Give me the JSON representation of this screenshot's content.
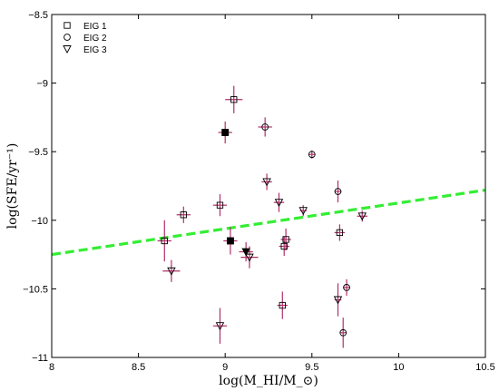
{
  "chart_data": {
    "type": "scatter",
    "xlabel": "log(M_HI/M_⊙)",
    "ylabel": "log(SFE/yr⁻¹)",
    "xlim": [
      8,
      10.5
    ],
    "ylim": [
      -11,
      -8.5
    ],
    "xticks": [
      8,
      8.5,
      9,
      9.5,
      10,
      10.5
    ],
    "xtick_labels": [
      "8",
      "8.5",
      "9",
      "9.5",
      "10",
      "10.5"
    ],
    "yticks": [
      -11,
      -10.5,
      -10,
      -9.5,
      -9,
      -8.5
    ],
    "ytick_labels": [
      "−11",
      "−10.5",
      "−10",
      "−9.5",
      "−9",
      "−8.5"
    ],
    "grid": false,
    "legend_position": "top-left",
    "series": [
      {
        "name": "EIG 1",
        "marker": "square",
        "points": [
          {
            "x": 8.65,
            "y": -10.15,
            "xerr": 0.04,
            "yerr": 0.15
          },
          {
            "x": 8.76,
            "y": -9.96,
            "xerr": 0.04,
            "yerr": 0.06
          },
          {
            "x": 8.97,
            "y": -9.89,
            "xerr": 0.04,
            "yerr": 0.08
          },
          {
            "x": 9.05,
            "y": -9.12,
            "xerr": 0.05,
            "yerr": 0.1
          },
          {
            "x": 9.33,
            "y": -10.62,
            "xerr": 0.03,
            "yerr": 0.1
          },
          {
            "x": 9.34,
            "y": -10.19,
            "xerr": 0.03,
            "yerr": 0.07
          },
          {
            "x": 9.35,
            "y": -10.14,
            "xerr": 0.03,
            "yerr": 0.08
          },
          {
            "x": 9.66,
            "y": -10.09,
            "xerr": 0.03,
            "yerr": 0.06
          },
          {
            "x": 9.0,
            "y": -9.36,
            "xerr": 0.04,
            "yerr": 0.08,
            "filled": true
          },
          {
            "x": 9.03,
            "y": -10.15,
            "xerr": 0.04,
            "yerr": 0.1,
            "filled": true
          }
        ]
      },
      {
        "name": "EIG 2",
        "marker": "circle",
        "points": [
          {
            "x": 9.23,
            "y": -9.32,
            "xerr": 0.04,
            "yerr": 0.07
          },
          {
            "x": 9.5,
            "y": -9.52,
            "xerr": 0.02,
            "yerr": 0.03
          },
          {
            "x": 9.65,
            "y": -9.79,
            "xerr": 0.02,
            "yerr": 0.08
          },
          {
            "x": 9.68,
            "y": -10.82,
            "xerr": 0.02,
            "yerr": 0.11
          },
          {
            "x": 9.7,
            "y": -10.49,
            "xerr": 0.02,
            "yerr": 0.06
          }
        ]
      },
      {
        "name": "EIG 3",
        "marker": "triangle-down",
        "points": [
          {
            "x": 8.69,
            "y": -10.37,
            "xerr": 0.05,
            "yerr": 0.08
          },
          {
            "x": 8.97,
            "y": -10.77,
            "xerr": 0.04,
            "yerr": 0.13
          },
          {
            "x": 9.14,
            "y": -10.27,
            "xerr": 0.05,
            "yerr": 0.08
          },
          {
            "x": 9.24,
            "y": -9.72,
            "xerr": 0.03,
            "yerr": 0.06
          },
          {
            "x": 9.31,
            "y": -9.87,
            "xerr": 0.03,
            "yerr": 0.07
          },
          {
            "x": 9.45,
            "y": -9.93,
            "xerr": 0.02,
            "yerr": 0.04
          },
          {
            "x": 9.65,
            "y": -10.58,
            "xerr": 0.02,
            "yerr": 0.12
          },
          {
            "x": 9.79,
            "y": -9.97,
            "xerr": 0.03,
            "yerr": 0.04
          },
          {
            "x": 9.12,
            "y": -10.23,
            "xerr": 0.04,
            "yerr": 0.07,
            "filled": true
          }
        ]
      }
    ],
    "trend_line": {
      "x": [
        8,
        10.5
      ],
      "y": [
        -10.25,
        -9.78
      ],
      "color": "#33ee33",
      "style": "dashed"
    },
    "colors": {
      "marker": "#000000",
      "error_bar": "#b0306a",
      "trend": "#33ee33"
    }
  }
}
